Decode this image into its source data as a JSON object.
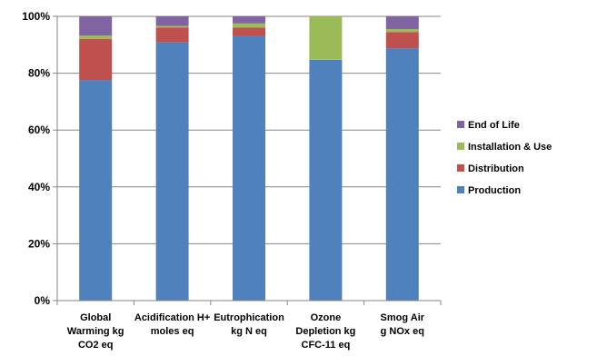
{
  "chart_data": {
    "type": "bar",
    "stacked": true,
    "percent": true,
    "categories": [
      [
        "Global",
        "Warming kg",
        "CO2 eq"
      ],
      [
        "Acidification H+",
        "moles eq"
      ],
      [
        "Eutrophication",
        "kg N eq"
      ],
      [
        "Ozone",
        "Depletion kg",
        "CFC-11 eq"
      ],
      [
        "Smog Air",
        "g NOx eq"
      ]
    ],
    "series": [
      {
        "name": "Production",
        "color": "#4F81BD",
        "values": [
          77.5,
          90.8,
          93.0,
          84.7,
          88.7
        ]
      },
      {
        "name": "Distribution",
        "color": "#C0504D",
        "values": [
          14.5,
          5.3,
          3.0,
          0.0,
          5.8
        ]
      },
      {
        "name": "Installation & Use",
        "color": "#9BBB59",
        "values": [
          1.2,
          0.5,
          1.5,
          15.3,
          1.0
        ]
      },
      {
        "name": "End of Life",
        "color": "#8064A2",
        "values": [
          6.8,
          3.4,
          2.5,
          0.0,
          4.5
        ]
      }
    ],
    "yticks": [
      "0%",
      "20%",
      "40%",
      "60%",
      "80%",
      "100%"
    ],
    "ylim": [
      0,
      100
    ],
    "grid": true,
    "legend_position": "right",
    "legend_order": [
      "End of Life",
      "Installation & Use",
      "Distribution",
      "Production"
    ]
  }
}
